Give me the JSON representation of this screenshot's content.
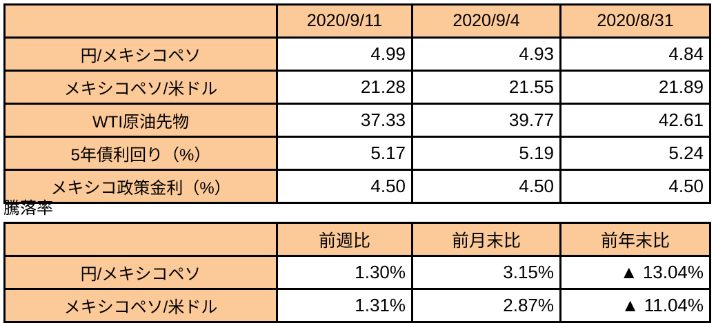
{
  "colors": {
    "header_bg": "#FCC998",
    "cell_bg": "#FFFFFF",
    "border": "#000000",
    "text": "#000000"
  },
  "chart_data": [
    {
      "type": "table",
      "name": "market-rates",
      "columns": [
        "2020/9/11",
        "2020/9/4",
        "2020/8/31"
      ],
      "rows": [
        {
          "label": "円/メキシコペソ",
          "values": [
            "4.99",
            "4.93",
            "4.84"
          ]
        },
        {
          "label": "メキシコペソ/米ドル",
          "values": [
            "21.28",
            "21.55",
            "21.89"
          ]
        },
        {
          "label": "WTI原油先物",
          "values": [
            "37.33",
            "39.77",
            "42.61"
          ]
        },
        {
          "label": "5年債利回り（%）",
          "values": [
            "5.17",
            "5.19",
            "5.24"
          ]
        },
        {
          "label": "メキシコ政策金利（%）",
          "values": [
            "4.50",
            "4.50",
            "4.50"
          ]
        }
      ]
    },
    {
      "type": "table",
      "name": "change-rates",
      "title": "騰落率",
      "columns": [
        "前週比",
        "前月末比",
        "前年末比"
      ],
      "rows": [
        {
          "label": "円/メキシコペソ",
          "values": [
            "1.30%",
            "3.15%",
            "▲ 13.04%"
          ]
        },
        {
          "label": "メキシコペソ/米ドル",
          "values": [
            "1.31%",
            "2.87%",
            "▲ 11.04%"
          ]
        }
      ]
    }
  ]
}
